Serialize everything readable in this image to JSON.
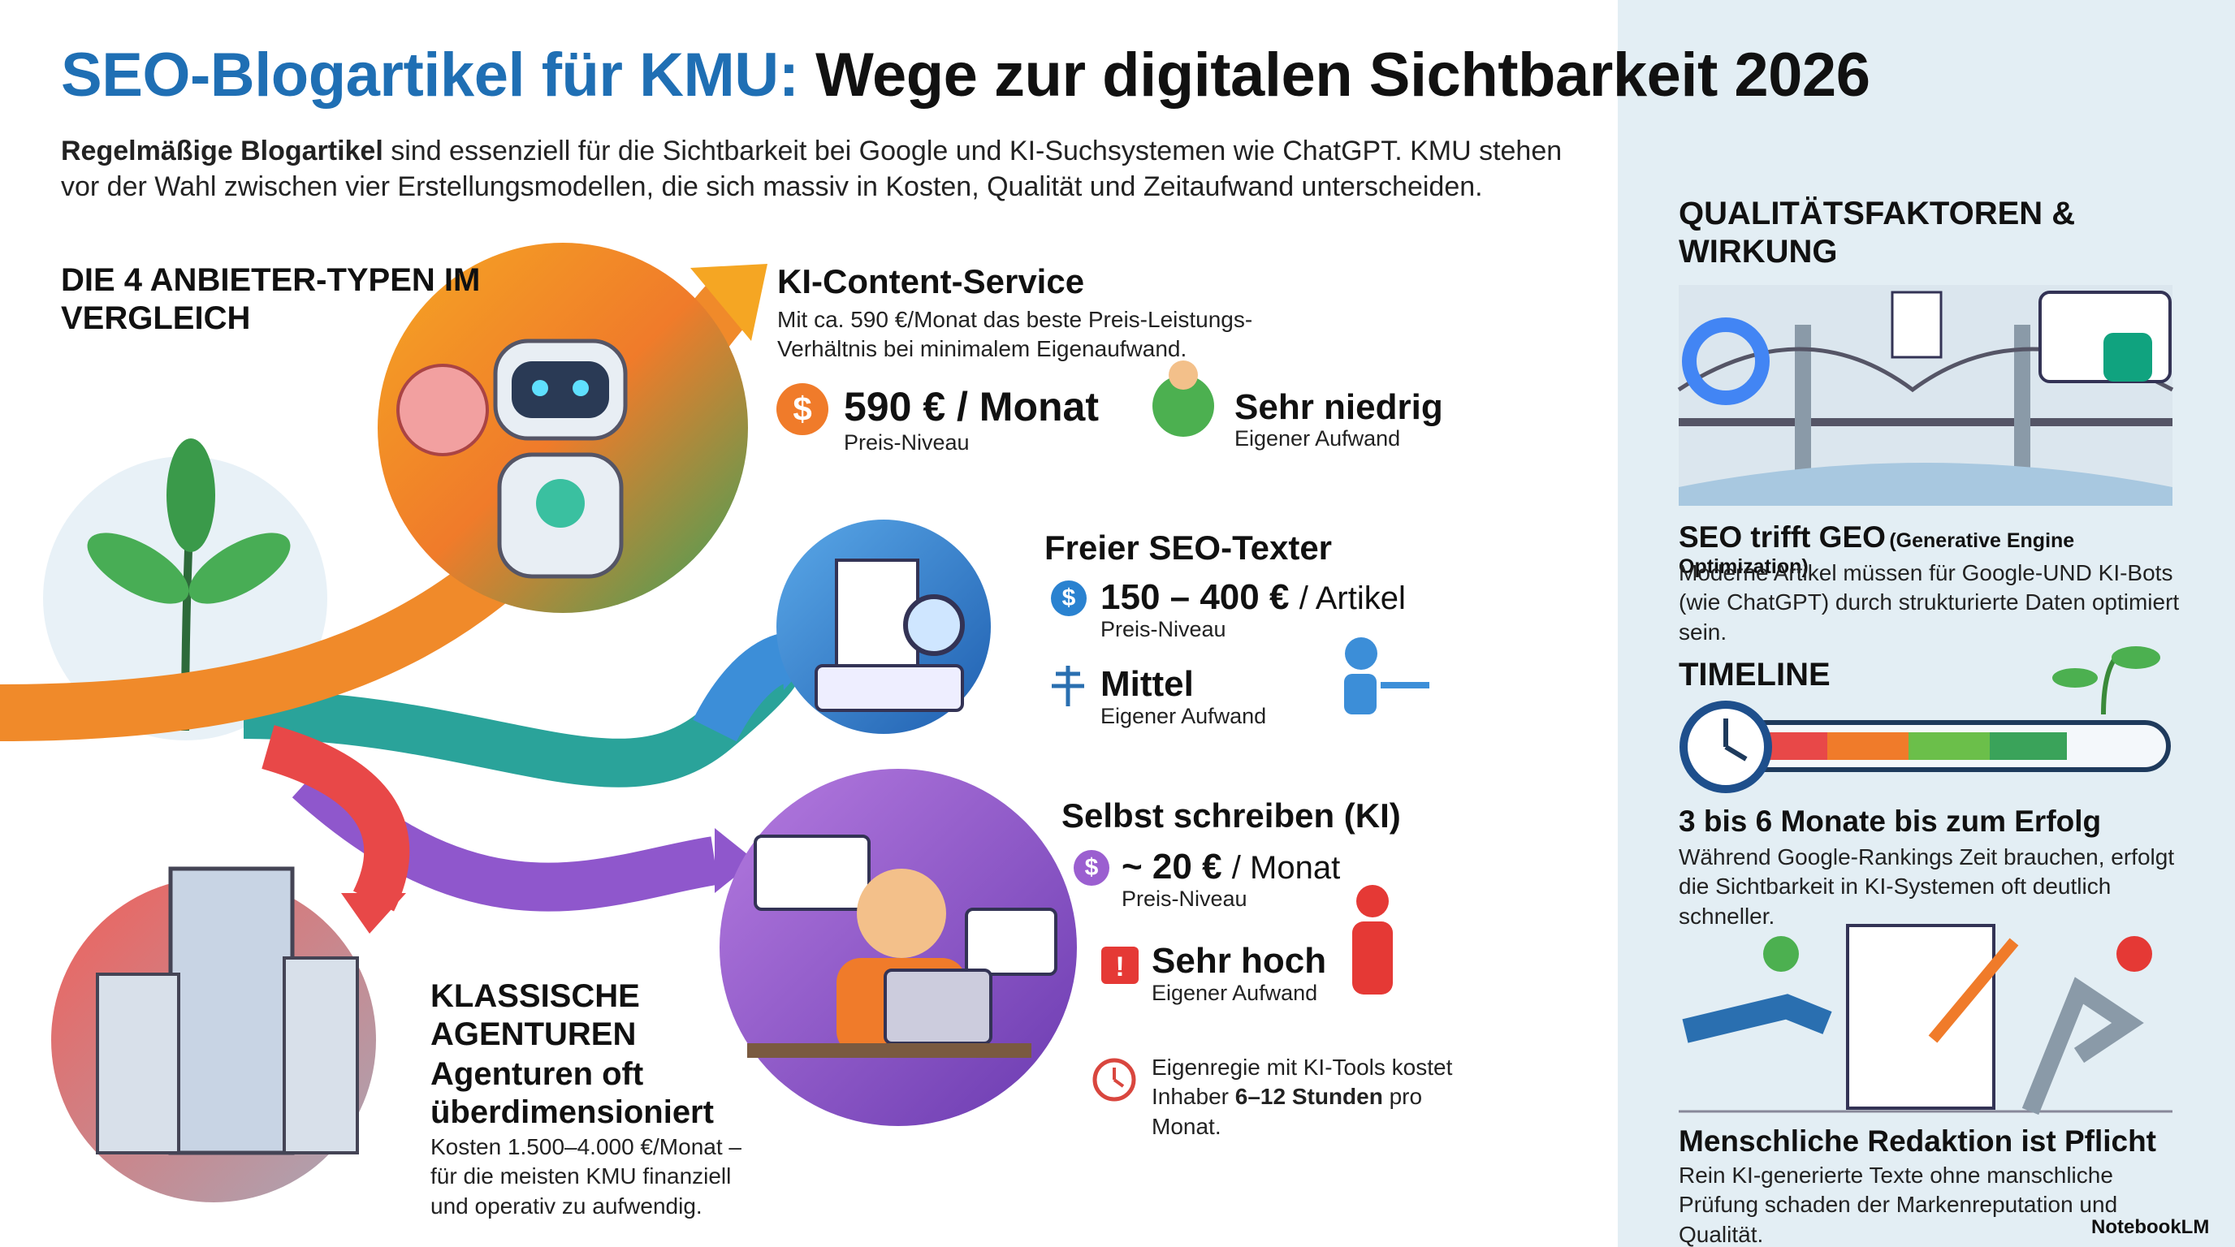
{
  "header": {
    "title_highlight": "SEO-Blogartikel für KMU:",
    "title_rest": "Wege zur digitalen Sichtbarkeit 2026",
    "intro_bold": "Regelmäßige Blogartikel",
    "intro_text": "sind essenziell für die Sichtbarkeit bei Google und KI-Suchsystemen wie ChatGPT. KMU stehen vor der Wahl zwischen vier Erstellungsmodellen, die sich massiv in Kosten, Qualität und Zeitaufwand unterscheiden."
  },
  "comparison": {
    "heading": "DIE 4 ANBIETER-TYPEN IM VERGLEICH",
    "providers": [
      {
        "name": "KI-Content-Service",
        "description": "Mit ca. 590 €/Monat das beste Preis-Leistungs-Verhältnis bei minimalem Eigenaufwand.",
        "price_icon": "$",
        "price": "590 € / Monat",
        "price_label": "Preis-Niveau",
        "effort": "Sehr niedrig",
        "effort_label": "Eigener Aufwand"
      },
      {
        "name": "Freier SEO-Texter",
        "price_icon": "$",
        "price": "150 – 400 €",
        "price_unit": "/ Artikel",
        "price_label": "Preis-Niveau",
        "effort": "Mittel",
        "effort_label": "Eigener Aufwand"
      },
      {
        "name": "Selbst schreiben (KI)",
        "price_icon": "$",
        "price": "~ 20 €",
        "price_unit": "/ Monat",
        "price_label": "Preis-Niveau",
        "effort_icon": "!",
        "effort": "Sehr hoch",
        "effort_label": "Eigener Aufwand",
        "note_start": "Eigenregie mit KI-Tools kostet Inhaber",
        "note_bold": "6–12 Stunden",
        "note_end": "pro Monat."
      },
      {
        "name": "KLASSISCHE AGENTUREN",
        "subtitle": "Agenturen oft überdimensioniert",
        "description": "Kosten 1.500–4.000 €/Monat – für die meisten KMU finanziell und operativ zu aufwendig."
      }
    ]
  },
  "sidebar": {
    "heading": "QUALITÄTSFAKTOREN & WIRKUNG",
    "items": [
      {
        "title": "SEO trifft GEO",
        "title_note": "(Generative Engine Optimization)",
        "description": "Moderne Artikel müssen für Google-UND KI-Bots (wie ChatGPT) durch strukturierte Daten optimiert sein."
      },
      {
        "heading": "TIMELINE",
        "title": "3 bis 6 Monate bis zum Erfolg",
        "description": "Während Google-Rankings Zeit brauchen, erfolgt die Sichtbarkeit in KI-Systemen oft deutlich schneller."
      },
      {
        "title": "Menschliche Redaktion ist Pflicht",
        "description": "Rein KI-generierte Texte ohne manschliche Prüfung schaden der Markenreputation und Qualität."
      }
    ]
  },
  "branding": "NotebookLM"
}
